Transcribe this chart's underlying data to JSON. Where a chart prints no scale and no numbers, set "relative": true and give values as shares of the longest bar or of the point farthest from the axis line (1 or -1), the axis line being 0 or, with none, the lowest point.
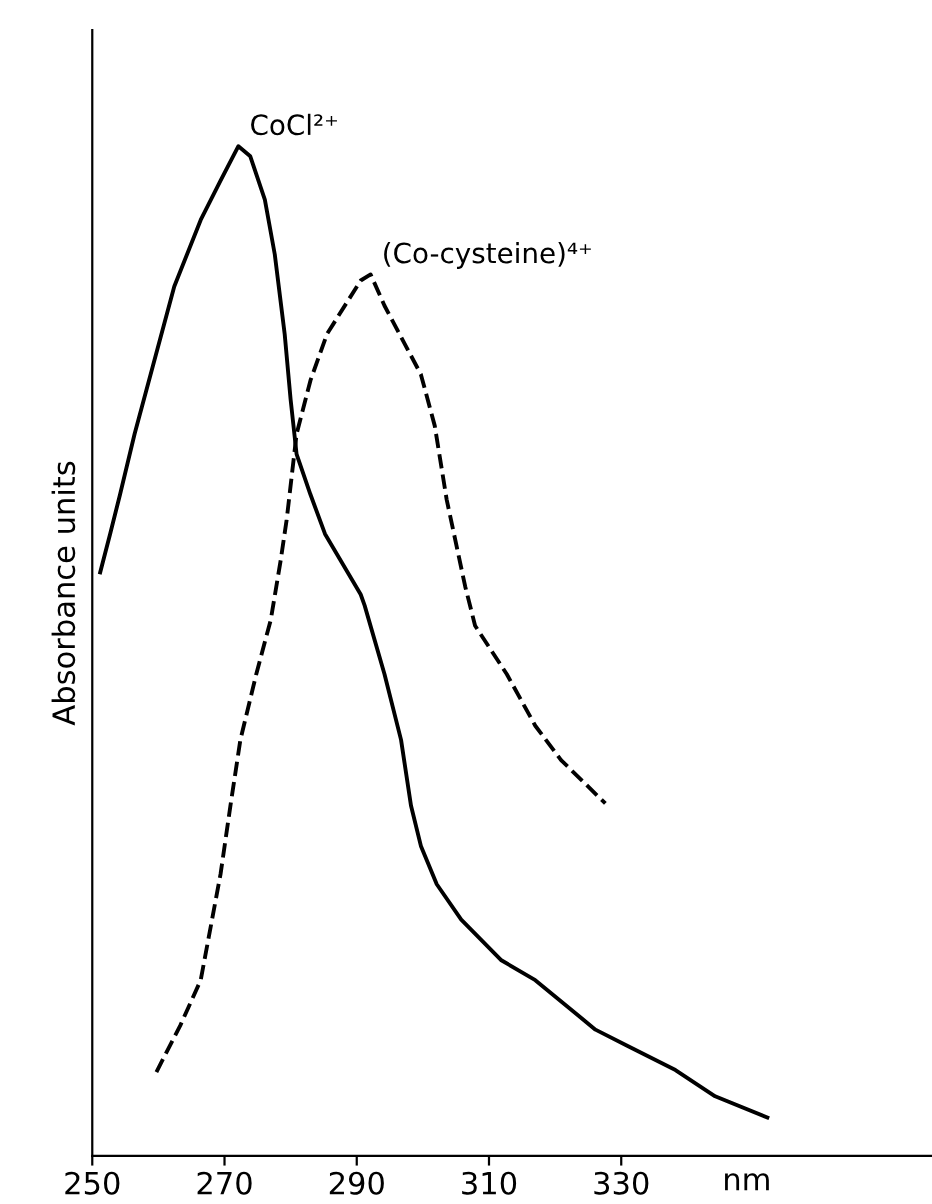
{
  "chart_data": {
    "type": "line",
    "relative": true,
    "ylabel": "Absorbance units",
    "xlabel": "nm",
    "xlim": [
      250,
      377
    ],
    "xticks": [
      250,
      270,
      290,
      310,
      330
    ],
    "grid": false,
    "legend": false,
    "marker": "none",
    "series": [
      {
        "name": "CoCl²⁺",
        "color": "#000000",
        "line_style": "solid",
        "x": [
          251.2,
          252.7,
          254.2,
          256.4,
          259.4,
          262.4,
          266.4,
          269.4,
          272.1,
          273.9,
          276.1,
          277.6,
          279.1,
          280.0,
          280.9,
          283.0,
          285.2,
          290.6,
          291.2,
          294.2,
          296.7,
          298.2,
          299.7,
          302.1,
          305.8,
          311.8,
          317.0,
          326.1,
          330.9,
          338.2,
          344.2,
          352.1
        ],
        "values": [
          0.578,
          0.616,
          0.655,
          0.715,
          0.788,
          0.861,
          0.927,
          0.966,
          1,
          0.99,
          0.947,
          0.893,
          0.814,
          0.749,
          0.695,
          0.655,
          0.616,
          0.556,
          0.545,
          0.477,
          0.412,
          0.347,
          0.307,
          0.269,
          0.234,
          0.194,
          0.174,
          0.125,
          0.109,
          0.085,
          0.059,
          0.038
        ]
      },
      {
        "name": "(Co-cysteine)⁴⁺",
        "color": "#000000",
        "line_style": "dashed",
        "x": [
          259.7,
          263.3,
          266.4,
          269.4,
          270.9,
          272.4,
          274.8,
          277.0,
          278.5,
          279.4,
          280.9,
          283.0,
          285.5,
          290.6,
          292.1,
          294.2,
          299.7,
          301.8,
          303.6,
          306.4,
          307.9,
          312.7,
          317.0,
          320.9,
          327.6
        ],
        "values": [
          0.083,
          0.129,
          0.174,
          0.279,
          0.347,
          0.412,
          0.477,
          0.531,
          0.59,
          0.63,
          0.715,
          0.768,
          0.814,
          0.867,
          0.873,
          0.842,
          0.774,
          0.723,
          0.65,
          0.564,
          0.525,
          0.477,
          0.426,
          0.392,
          0.349
        ]
      }
    ]
  }
}
